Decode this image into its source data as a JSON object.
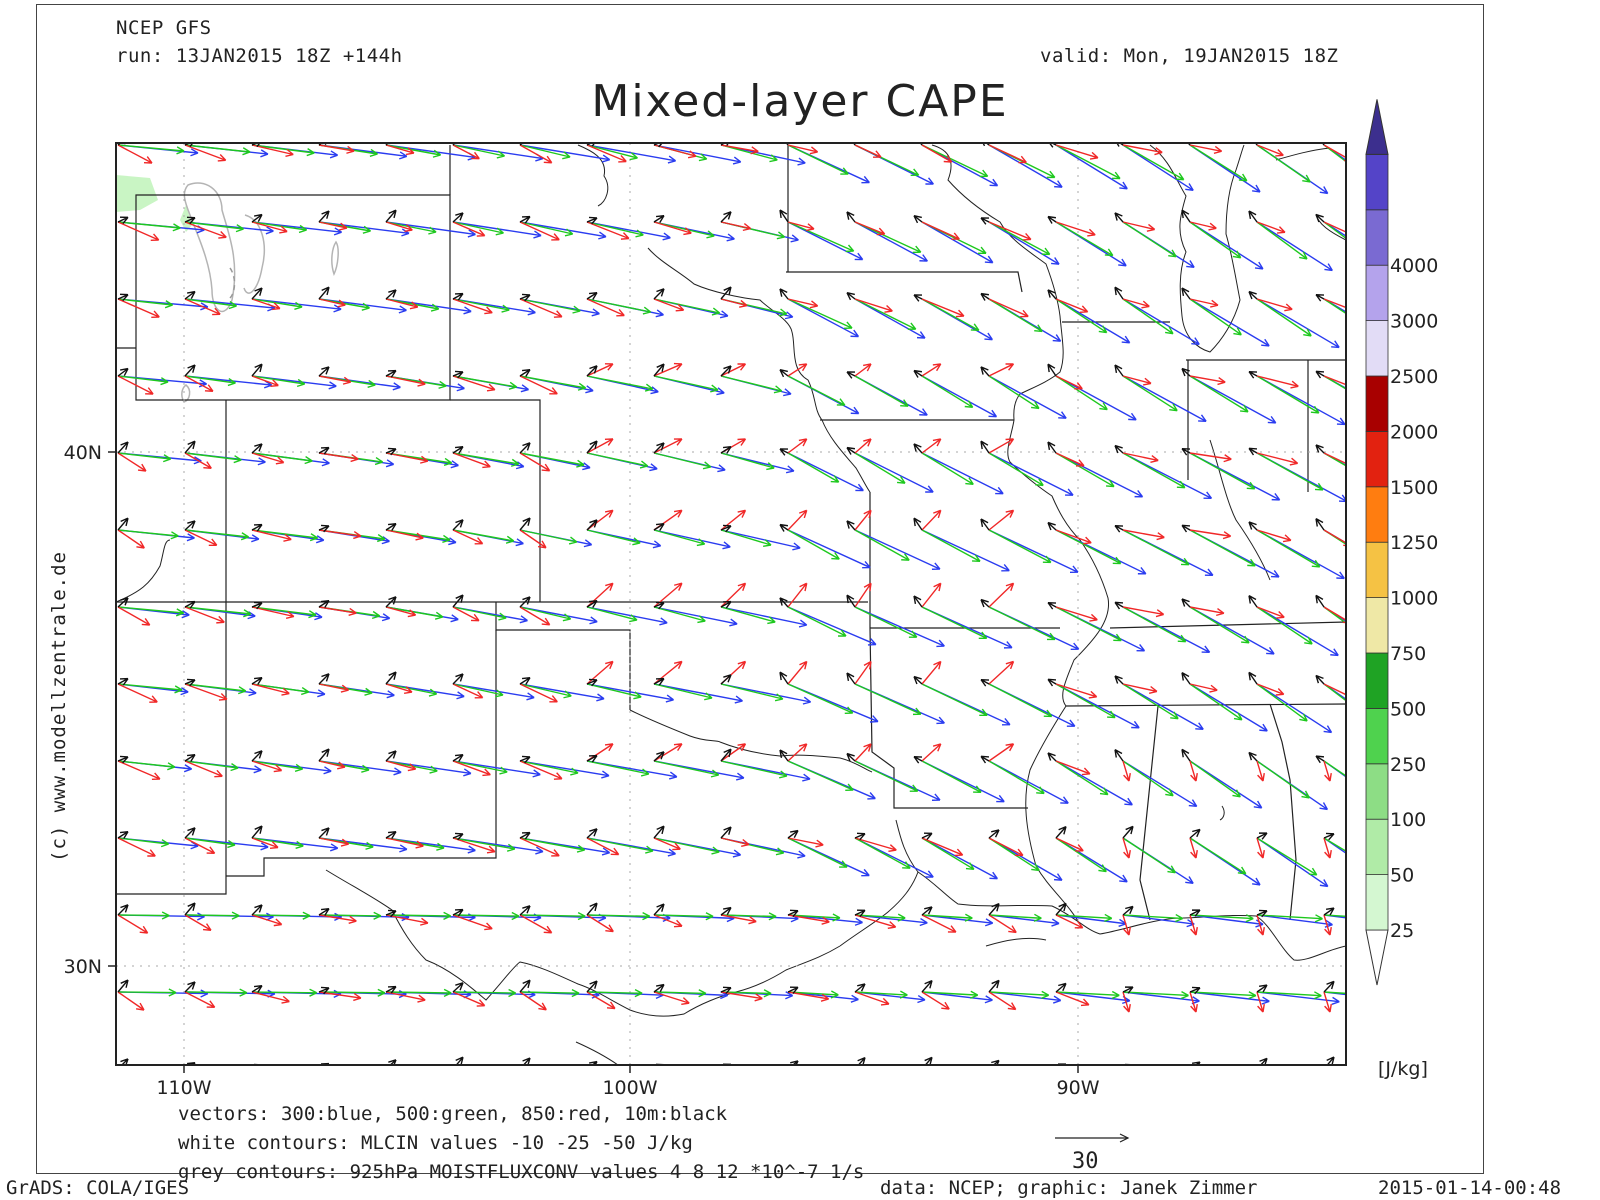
{
  "header": {
    "model": "NCEP GFS",
    "run": "run: 13JAN2015 18Z +144h",
    "valid": "valid: Mon, 19JAN2015 18Z",
    "title": "Mixed-layer CAPE"
  },
  "axes": {
    "lat_labels": [
      "40N",
      "30N"
    ],
    "lon_labels": [
      "110W",
      "100W",
      "90W"
    ]
  },
  "colorbar": {
    "unit": "[J/kg]",
    "levels": [
      "25",
      "50",
      "100",
      "250",
      "500",
      "750",
      "1000",
      "1250",
      "1500",
      "2000",
      "2500",
      "3000",
      "4000"
    ],
    "colors": [
      "#d4f7d1",
      "#b0eba7",
      "#8ddd85",
      "#4fd24e",
      "#1fa324",
      "#efe8a6",
      "#f5c244",
      "#ff7d10",
      "#e22210",
      "#a80000",
      "#e2dcf6",
      "#b4a3ec",
      "#7a6ad2",
      "#5444c8",
      "#3c2f8e"
    ]
  },
  "info": {
    "line1": "vectors: 300:blue, 500:green, 850:red, 10m:black",
    "line2": "white contours: MLCIN values -10 -25 -50 J/kg",
    "line3": "grey contours: 925hPa MOISTFLUXCONV values 4 8 12 *10^-7 1/s"
  },
  "reference_vector": {
    "label": "30"
  },
  "watermark": "(c) www.modellzentrale.de",
  "footer": {
    "left": "GrADS: COLA/IGES",
    "center": "data: NCEP; graphic: Janek Zimmer",
    "right": "2015-01-14-00:48"
  },
  "vector_colors": {
    "300hPa": "#2a3cf0",
    "500hPa": "#1ec81e",
    "850hPa": "#f02828",
    "10m": "#111111"
  }
}
